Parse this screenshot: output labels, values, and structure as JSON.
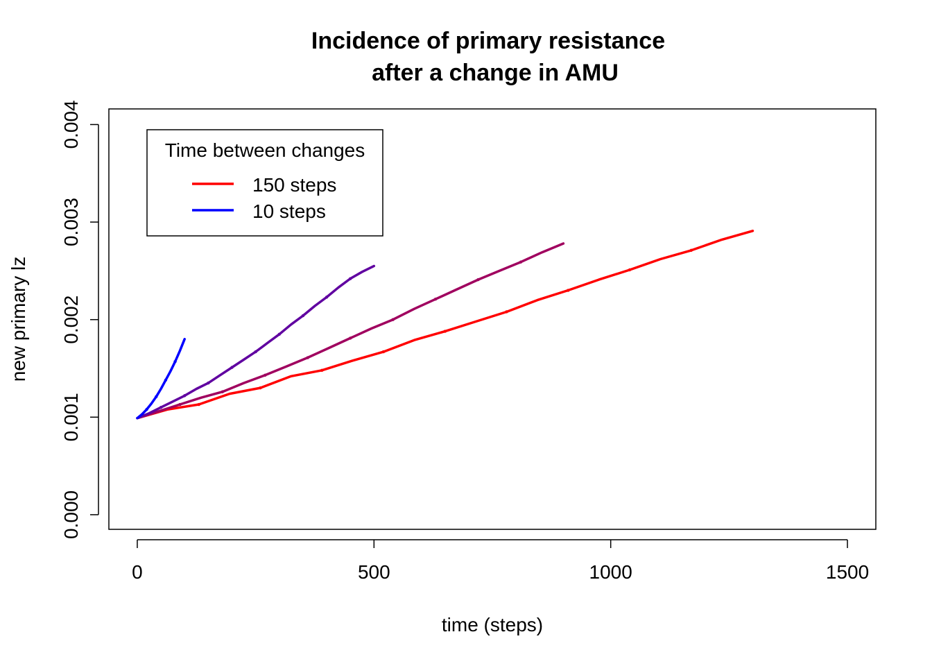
{
  "chart_data": {
    "type": "line",
    "title_line1": "Incidence of primary resistance",
    "title_line2": "after a change in AMU",
    "xlabel": "time (steps)",
    "ylabel": "new primary lz",
    "xlim": [
      -60,
      1560
    ],
    "ylim": [
      -0.00015,
      0.00416
    ],
    "x_ticks": [
      0,
      500,
      1000,
      1500
    ],
    "x_tick_labels": [
      "0",
      "500",
      "1000",
      "1500"
    ],
    "y_ticks": [
      0.0,
      0.001,
      0.002,
      0.003,
      0.004
    ],
    "y_tick_labels": [
      "0.000",
      "0.001",
      "0.002",
      "0.003",
      "0.004"
    ],
    "grid": false,
    "legend": {
      "title": "Time between changes",
      "position": "top-left",
      "entries": [
        {
          "label": "150 steps",
          "color": "#ff0000"
        },
        {
          "label": "10 steps",
          "color": "#0000ff"
        }
      ]
    },
    "series": [
      {
        "color": "#ff0000",
        "x": [
          0,
          65,
          130,
          195,
          260,
          325,
          390,
          455,
          520,
          585,
          650,
          715,
          780,
          845,
          910,
          975,
          1040,
          1105,
          1170,
          1235,
          1300
        ],
        "y": [
          0.00099,
          0.00108,
          0.00113,
          0.00124,
          0.0013,
          0.00142,
          0.00148,
          0.00158,
          0.00167,
          0.00179,
          0.00188,
          0.00198,
          0.00208,
          0.0022,
          0.0023,
          0.00241,
          0.00251,
          0.00262,
          0.00271,
          0.00282,
          0.00291
        ]
      },
      {
        "color": "#a0005f",
        "x": [
          0,
          45,
          90,
          135,
          180,
          225,
          270,
          315,
          360,
          405,
          450,
          495,
          540,
          585,
          630,
          675,
          720,
          765,
          810,
          855,
          900
        ],
        "y": [
          0.00099,
          0.00106,
          0.00113,
          0.0012,
          0.00126,
          0.00135,
          0.00143,
          0.00152,
          0.00161,
          0.00171,
          0.00181,
          0.00191,
          0.002,
          0.00211,
          0.00221,
          0.00231,
          0.00241,
          0.0025,
          0.00259,
          0.00269,
          0.00278
        ]
      },
      {
        "color": "#6000a0",
        "x": [
          0,
          25,
          50,
          75,
          100,
          125,
          150,
          175,
          200,
          225,
          250,
          275,
          300,
          325,
          350,
          375,
          400,
          425,
          450,
          475,
          500
        ],
        "y": [
          0.00099,
          0.00104,
          0.0011,
          0.00116,
          0.00122,
          0.00129,
          0.00135,
          0.00143,
          0.00151,
          0.00159,
          0.00167,
          0.00176,
          0.00185,
          0.00195,
          0.00204,
          0.00214,
          0.00223,
          0.00233,
          0.00242,
          0.00249,
          0.00255
        ]
      },
      {
        "color": "#0000ff",
        "x": [
          0,
          10,
          20,
          30,
          40,
          50,
          60,
          70,
          80,
          90,
          100
        ],
        "y": [
          0.00099,
          0.00103,
          0.00108,
          0.00114,
          0.00121,
          0.00129,
          0.00138,
          0.00147,
          0.00157,
          0.00168,
          0.0018
        ]
      }
    ]
  }
}
